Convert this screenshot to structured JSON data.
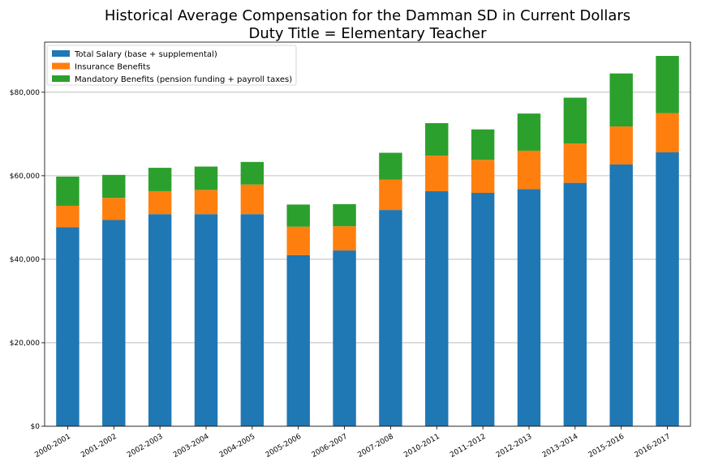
{
  "chart_data": {
    "type": "bar",
    "stacked": true,
    "title": "Historical Average Compensation for the Damman SD in Current Dollars",
    "subtitle": "Duty Title = Elementary Teacher",
    "xlabel": "",
    "ylabel": "",
    "ylim": [
      0,
      92000
    ],
    "yticks": [
      0,
      20000,
      40000,
      60000,
      80000
    ],
    "ytick_labels": [
      "$0",
      "$20,000",
      "$40,000",
      "$60,000",
      "$80,000"
    ],
    "grid": "horizontal",
    "legend_position": "upper-left",
    "categories": [
      "2000-2001",
      "2001-2002",
      "2002-2003",
      "2003-2004",
      "2004-2005",
      "2005-2006",
      "2006-2007",
      "2007-2008",
      "2010-2011",
      "2011-2012",
      "2012-2013",
      "2013-2014",
      "2015-2016",
      "2016-2017"
    ],
    "series": [
      {
        "name": "Total Salary (base + supplemental)",
        "color": "#1f77b4",
        "values": [
          47700,
          49400,
          50800,
          50800,
          50800,
          41000,
          42100,
          51800,
          56300,
          55900,
          56800,
          58300,
          62700,
          65600
        ]
      },
      {
        "name": "Insurance Benefits",
        "color": "#ff7f0e",
        "values": [
          5100,
          5300,
          5500,
          5800,
          7100,
          6800,
          5800,
          7300,
          8500,
          7900,
          9200,
          9400,
          9100,
          9400
        ]
      },
      {
        "name": "Mandatory Benefits (pension funding + payroll taxes)",
        "color": "#2ca02c",
        "values": [
          7000,
          5500,
          5600,
          5600,
          5400,
          5300,
          5300,
          6400,
          7800,
          7300,
          8900,
          11000,
          12700,
          13700
        ]
      }
    ]
  }
}
